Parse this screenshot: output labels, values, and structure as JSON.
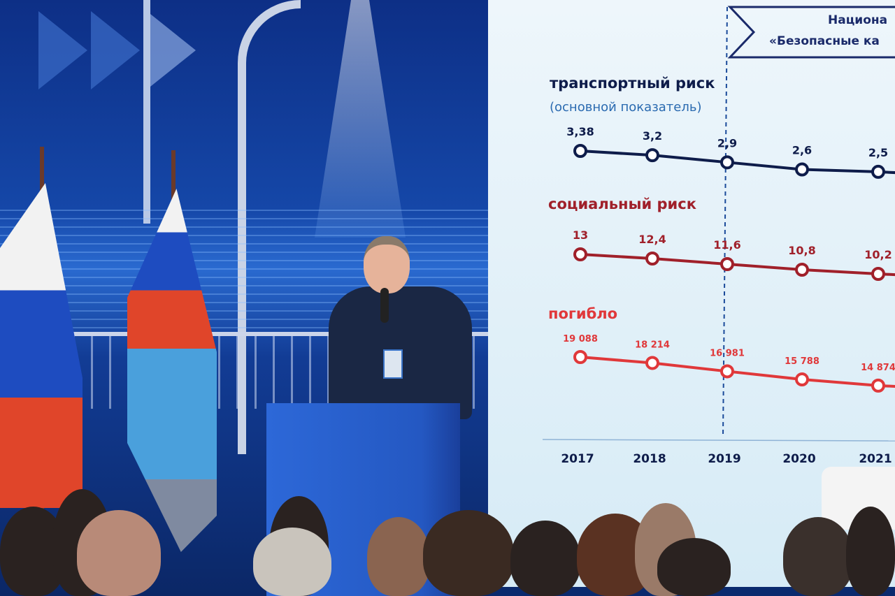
{
  "scene": "conference speaker at podium presenting road safety slide",
  "colors": {
    "transport": "#0e1c4a",
    "social": "#a0202a",
    "deaths": "#e0383a",
    "slide_bg": "#e6f2f9",
    "title_blue": "#1a3a80"
  },
  "slide": {
    "header_line1": "Национа",
    "header_line2": "«Безопасные ка",
    "chart_data": {
      "type": "line",
      "categories": [
        "2017",
        "2018",
        "2019",
        "2020",
        "2021"
      ],
      "series": [
        {
          "name": "транспортный риск",
          "subtitle": "(основной показатель)",
          "values": [
            3.38,
            3.2,
            2.9,
            2.6,
            2.5
          ],
          "labels": [
            "3,38",
            "3,2",
            "2,9",
            "2,6",
            "2,5"
          ]
        },
        {
          "name": "социальный риск",
          "values": [
            13,
            12.4,
            11.6,
            10.8,
            10.2
          ],
          "labels": [
            "13",
            "12,4",
            "11,6",
            "10,8",
            "10,2"
          ]
        },
        {
          "name": "погибло",
          "values": [
            19088,
            18214,
            16981,
            15788,
            14874
          ],
          "labels": [
            "19 088",
            "18 214",
            "16 981",
            "15 788",
            "14 874"
          ]
        }
      ],
      "annotations": [
        "dashed vertical line at 2019"
      ]
    }
  }
}
